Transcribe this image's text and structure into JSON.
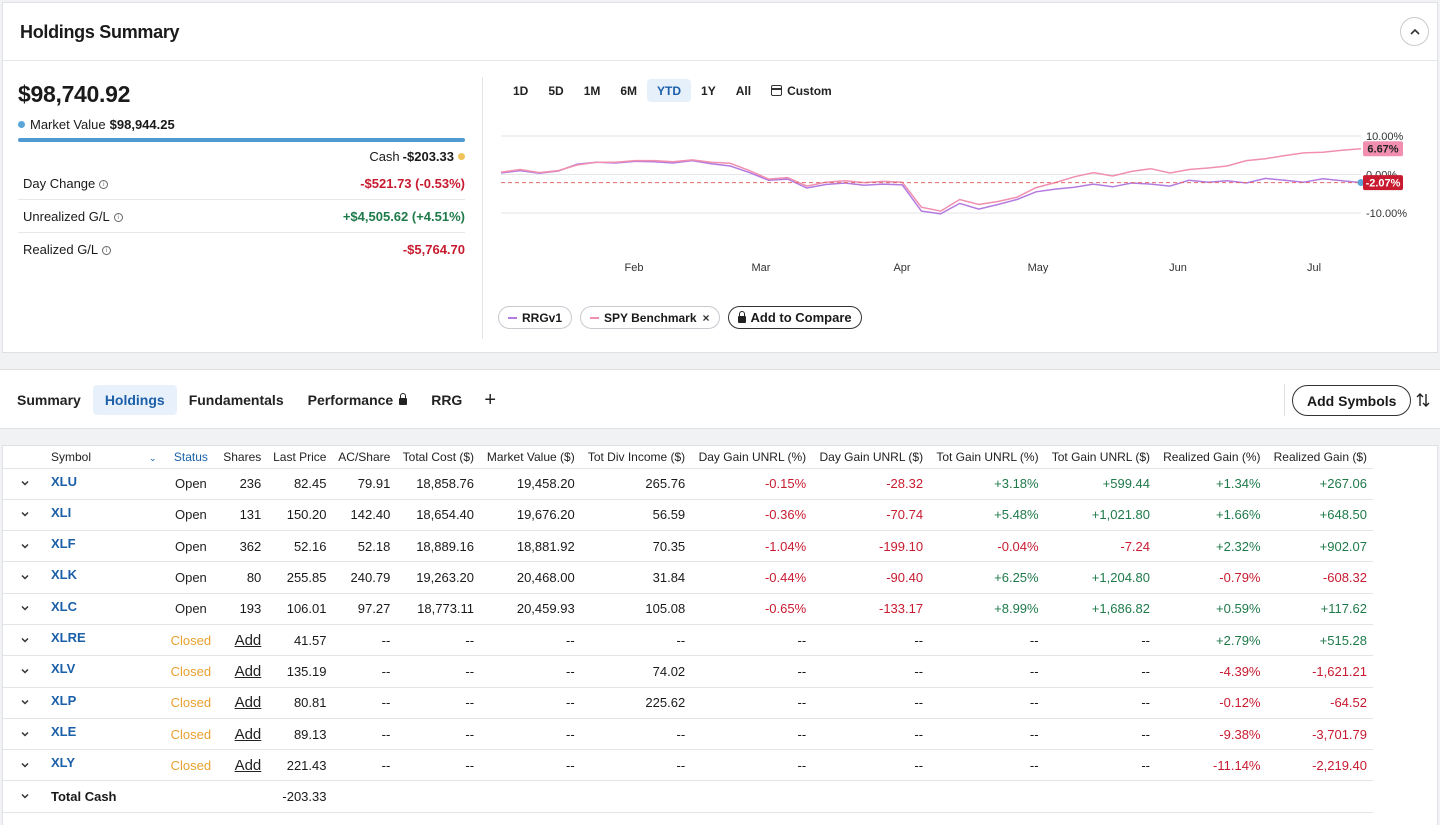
{
  "summary": {
    "title": "Holdings Summary",
    "total_value": "$98,740.92",
    "market_value_label": "Market Value",
    "market_value": "$98,944.25",
    "cash_label": "Cash",
    "cash_value": "-$203.33",
    "stats": [
      {
        "label": "Day Change",
        "value": "-$521.73 (-0.53%)",
        "tone": "neg"
      },
      {
        "label": "Unrealized G/L",
        "value": "+$4,505.62 (+4.51%)",
        "tone": "pos"
      },
      {
        "label": "Realized G/L",
        "value": "-$5,764.70",
        "tone": "neg"
      }
    ],
    "colors": {
      "market_value_bar": "#4f9ad3",
      "cash_dot": "#f0c35a",
      "negative": "#c81b30",
      "positive": "#1f7a4a"
    }
  },
  "chart": {
    "ranges": [
      "1D",
      "5D",
      "1M",
      "6M",
      "YTD",
      "1Y",
      "All"
    ],
    "active_range": "YTD",
    "custom_label": "Custom",
    "legend": {
      "portfolio": "RRGv1",
      "benchmark": "SPY Benchmark",
      "compare": "Add to Compare"
    }
  },
  "chart_data": {
    "type": "line",
    "x_ticks": [
      "Feb",
      "Mar",
      "Apr",
      "May",
      "Jun",
      "Jul"
    ],
    "y_ticks": [
      "10.00%",
      "0.00%",
      "-10.00%"
    ],
    "ylim": [
      -10,
      10
    ],
    "grid": true,
    "series": [
      {
        "name": "RRGv1",
        "color": "#b37be0",
        "end_label": "-2.07%",
        "end_label_color": "#c81b30",
        "values": [
          0.4,
          1.0,
          0.3,
          0.9,
          2.7,
          3.2,
          3.0,
          3.4,
          3.3,
          3.0,
          3.6,
          2.8,
          2.2,
          0.5,
          -1.5,
          -1.2,
          -3.5,
          -2.6,
          -2.2,
          -2.8,
          -2.5,
          -2.7,
          -9.5,
          -10.2,
          -7.5,
          -9.0,
          -7.8,
          -6.5,
          -4.5,
          -3.8,
          -3.3,
          -2.5,
          -3.2,
          -2.2,
          -2.5,
          -3.0,
          -1.5,
          -2.0,
          -1.6,
          -2.2,
          -1.0,
          -1.5,
          -2.0,
          -1.1,
          -1.6,
          -2.1
        ]
      },
      {
        "name": "SPY Benchmark",
        "color": "#f08fb0",
        "end_label": "6.67%",
        "end_label_color": "#f28fb1",
        "values": [
          0.6,
          1.3,
          0.5,
          1.0,
          2.5,
          3.2,
          3.2,
          3.6,
          3.6,
          3.3,
          3.8,
          3.2,
          2.9,
          1.0,
          -1.2,
          -0.8,
          -3.0,
          -2.0,
          -1.6,
          -2.1,
          -1.8,
          -2.0,
          -8.5,
          -9.5,
          -6.5,
          -7.8,
          -7.0,
          -5.9,
          -3.4,
          -2.1,
          -0.6,
          0.5,
          -0.4,
          0.8,
          1.5,
          0.4,
          1.3,
          1.7,
          2.2,
          3.6,
          4.1,
          4.9,
          5.6,
          5.8,
          6.3,
          6.7
        ]
      }
    ]
  },
  "tabs": {
    "items": [
      "Summary",
      "Holdings",
      "Fundamentals",
      "Performance",
      "RRG"
    ],
    "active": "Holdings",
    "add_symbols": "Add Symbols"
  },
  "holdings": {
    "columns": [
      "Symbol",
      "Status",
      "Shares",
      "Last Price",
      "AC/Share",
      "Total Cost ($)",
      "Market Value ($)",
      "Tot Div Income ($)",
      "Day Gain UNRL (%)",
      "Day Gain UNRL ($)",
      "Tot Gain UNRL (%)",
      "Tot Gain UNRL ($)",
      "Realized Gain (%)",
      "Realized Gain ($)"
    ],
    "rows": [
      {
        "symbol": "XLU",
        "status": "Open",
        "shares": "236",
        "last": "82.45",
        "ac": "79.91",
        "cost": "18,858.76",
        "mv": "19,458.20",
        "div": "265.76",
        "dgp": "-0.15%",
        "dgd": "-28.32",
        "tgp": "+3.18%",
        "tgd": "+599.44",
        "rgp": "+1.34%",
        "rgd": "+267.06"
      },
      {
        "symbol": "XLI",
        "status": "Open",
        "shares": "131",
        "last": "150.20",
        "ac": "142.40",
        "cost": "18,654.40",
        "mv": "19,676.20",
        "div": "56.59",
        "dgp": "-0.36%",
        "dgd": "-70.74",
        "tgp": "+5.48%",
        "tgd": "+1,021.80",
        "rgp": "+1.66%",
        "rgd": "+648.50"
      },
      {
        "symbol": "XLF",
        "status": "Open",
        "shares": "362",
        "last": "52.16",
        "ac": "52.18",
        "cost": "18,889.16",
        "mv": "18,881.92",
        "div": "70.35",
        "dgp": "-1.04%",
        "dgd": "-199.10",
        "tgp": "-0.04%",
        "tgd": "-7.24",
        "rgp": "+2.32%",
        "rgd": "+902.07"
      },
      {
        "symbol": "XLK",
        "status": "Open",
        "shares": "80",
        "last": "255.85",
        "ac": "240.79",
        "cost": "19,263.20",
        "mv": "20,468.00",
        "div": "31.84",
        "dgp": "-0.44%",
        "dgd": "-90.40",
        "tgp": "+6.25%",
        "tgd": "+1,204.80",
        "rgp": "-0.79%",
        "rgd": "-608.32"
      },
      {
        "symbol": "XLC",
        "status": "Open",
        "shares": "193",
        "last": "106.01",
        "ac": "97.27",
        "cost": "18,773.11",
        "mv": "20,459.93",
        "div": "105.08",
        "dgp": "-0.65%",
        "dgd": "-133.17",
        "tgp": "+8.99%",
        "tgd": "+1,686.82",
        "rgp": "+0.59%",
        "rgd": "+117.62"
      },
      {
        "symbol": "XLRE",
        "status": "Closed",
        "shares": "Add",
        "last": "41.57",
        "ac": "--",
        "cost": "--",
        "mv": "--",
        "div": "--",
        "dgp": "--",
        "dgd": "--",
        "tgp": "--",
        "tgd": "--",
        "rgp": "+2.79%",
        "rgd": "+515.28"
      },
      {
        "symbol": "XLV",
        "status": "Closed",
        "shares": "Add",
        "last": "135.19",
        "ac": "--",
        "cost": "--",
        "mv": "--",
        "div": "74.02",
        "dgp": "--",
        "dgd": "--",
        "tgp": "--",
        "tgd": "--",
        "rgp": "-4.39%",
        "rgd": "-1,621.21"
      },
      {
        "symbol": "XLP",
        "status": "Closed",
        "shares": "Add",
        "last": "80.81",
        "ac": "--",
        "cost": "--",
        "mv": "--",
        "div": "225.62",
        "dgp": "--",
        "dgd": "--",
        "tgp": "--",
        "tgd": "--",
        "rgp": "-0.12%",
        "rgd": "-64.52"
      },
      {
        "symbol": "XLE",
        "status": "Closed",
        "shares": "Add",
        "last": "89.13",
        "ac": "--",
        "cost": "--",
        "mv": "--",
        "div": "--",
        "dgp": "--",
        "dgd": "--",
        "tgp": "--",
        "tgd": "--",
        "rgp": "-9.38%",
        "rgd": "-3,701.79"
      },
      {
        "symbol": "XLY",
        "status": "Closed",
        "shares": "Add",
        "last": "221.43",
        "ac": "--",
        "cost": "--",
        "mv": "--",
        "div": "--",
        "dgp": "--",
        "dgd": "--",
        "tgp": "--",
        "tgd": "--",
        "rgp": "-11.14%",
        "rgd": "-2,219.40"
      }
    ],
    "total_cash": {
      "label": "Total Cash",
      "value": "-203.33"
    }
  }
}
